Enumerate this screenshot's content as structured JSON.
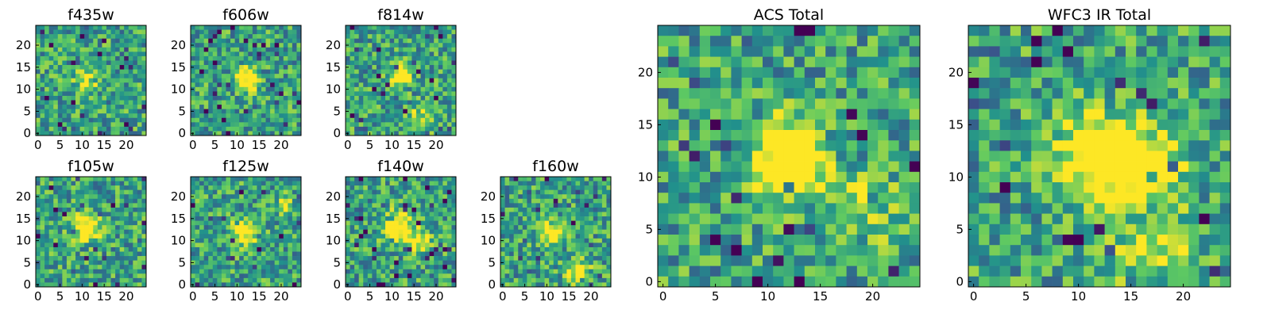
{
  "figure": {
    "colormap": [
      "#440154",
      "#3b528b",
      "#21918c",
      "#5ec962",
      "#fde725"
    ],
    "panels": [
      {
        "id": "f435w",
        "title": "f435w",
        "grid_size": 25,
        "seed": 11,
        "blobs": [
          {
            "cx": 11,
            "cy": 12,
            "sigma": 1.8,
            "amp": 0.35
          }
        ],
        "xticks": [
          "0",
          "5",
          "10",
          "15",
          "20"
        ],
        "xtick_values": [
          0,
          5,
          10,
          15,
          20
        ],
        "yticks": [
          "0",
          "5",
          "10",
          "15",
          "20"
        ],
        "ytick_values": [
          0,
          5,
          10,
          15,
          20
        ]
      },
      {
        "id": "f606w",
        "title": "f606w",
        "grid_size": 25,
        "seed": 23,
        "blobs": [
          {
            "cx": 12,
            "cy": 12,
            "sigma": 1.6,
            "amp": 0.9
          }
        ],
        "xticks": [
          "0",
          "5",
          "10",
          "15",
          "20"
        ],
        "xtick_values": [
          0,
          5,
          10,
          15,
          20
        ],
        "yticks": [
          "0",
          "5",
          "10",
          "15",
          "20"
        ],
        "ytick_values": [
          0,
          5,
          10,
          15,
          20
        ]
      },
      {
        "id": "f814w",
        "title": "f814w",
        "grid_size": 25,
        "seed": 37,
        "blobs": [
          {
            "cx": 12,
            "cy": 13,
            "sigma": 1.6,
            "amp": 0.75
          },
          {
            "cx": 16,
            "cy": 3,
            "sigma": 1.8,
            "amp": 0.4
          }
        ],
        "xticks": [
          "0",
          "5",
          "10",
          "15",
          "20"
        ],
        "xtick_values": [
          0,
          5,
          10,
          15,
          20
        ],
        "yticks": [
          "0",
          "5",
          "10",
          "15",
          "20"
        ],
        "ytick_values": [
          0,
          5,
          10,
          15,
          20
        ]
      },
      {
        "id": "f105w",
        "title": "f105w",
        "grid_size": 25,
        "seed": 41,
        "blobs": [
          {
            "cx": 11,
            "cy": 13,
            "sigma": 2.0,
            "amp": 0.7
          }
        ],
        "xticks": [
          "0",
          "5",
          "10",
          "15",
          "20"
        ],
        "xtick_values": [
          0,
          5,
          10,
          15,
          20
        ],
        "yticks": [
          "0",
          "5",
          "10",
          "15",
          "20"
        ],
        "ytick_values": [
          0,
          5,
          10,
          15,
          20
        ]
      },
      {
        "id": "f125w",
        "title": "f125w",
        "grid_size": 25,
        "seed": 53,
        "blobs": [
          {
            "cx": 12,
            "cy": 12,
            "sigma": 2.0,
            "amp": 0.6
          },
          {
            "cx": 21,
            "cy": 18,
            "sigma": 1.2,
            "amp": 0.5
          }
        ],
        "xticks": [
          "0",
          "5",
          "10",
          "15",
          "20"
        ],
        "xtick_values": [
          0,
          5,
          10,
          15,
          20
        ],
        "yticks": [
          "0",
          "5",
          "10",
          "15",
          "20"
        ],
        "ytick_values": [
          0,
          5,
          10,
          15,
          20
        ]
      },
      {
        "id": "f140w",
        "title": "f140w",
        "grid_size": 25,
        "seed": 67,
        "blobs": [
          {
            "cx": 11,
            "cy": 13,
            "sigma": 2.2,
            "amp": 0.75
          },
          {
            "cx": 16,
            "cy": 10,
            "sigma": 1.8,
            "amp": 0.45
          }
        ],
        "xticks": [
          "0",
          "5",
          "10",
          "15",
          "20"
        ],
        "xtick_values": [
          0,
          5,
          10,
          15,
          20
        ],
        "yticks": [
          "0",
          "5",
          "10",
          "15",
          "20"
        ],
        "ytick_values": [
          0,
          5,
          10,
          15,
          20
        ]
      },
      {
        "id": "f160w",
        "title": "f160w",
        "grid_size": 25,
        "seed": 79,
        "blobs": [
          {
            "cx": 11,
            "cy": 12,
            "sigma": 2.0,
            "amp": 0.6
          },
          {
            "cx": 17,
            "cy": 3,
            "sigma": 1.8,
            "amp": 0.5
          }
        ],
        "xticks": [
          "0",
          "5",
          "10",
          "15",
          "20"
        ],
        "xtick_values": [
          0,
          5,
          10,
          15,
          20
        ],
        "yticks": [
          "0",
          "5",
          "10",
          "15",
          "20"
        ],
        "ytick_values": [
          0,
          5,
          10,
          15,
          20
        ]
      },
      {
        "id": "acs-total",
        "title": "ACS Total",
        "grid_size": 25,
        "seed": 97,
        "blobs": [
          {
            "cx": 12,
            "cy": 12,
            "sigma": 2.2,
            "amp": 0.95
          },
          {
            "cx": 19,
            "cy": 7,
            "sigma": 2.5,
            "amp": 0.25
          }
        ],
        "xticks": [
          "0",
          "5",
          "10",
          "15",
          "20"
        ],
        "xtick_values": [
          0,
          5,
          10,
          15,
          20
        ],
        "yticks": [
          "0",
          "5",
          "10",
          "15",
          "20"
        ],
        "ytick_values": [
          0,
          5,
          10,
          15,
          20
        ]
      },
      {
        "id": "wfc3-ir-total",
        "title": "WFC3 IR Total",
        "grid_size": 25,
        "seed": 113,
        "blobs": [
          {
            "cx": 12,
            "cy": 12,
            "sigma": 2.6,
            "amp": 0.85
          },
          {
            "cx": 17,
            "cy": 11,
            "sigma": 2.2,
            "amp": 0.5
          },
          {
            "cx": 17,
            "cy": 3,
            "sigma": 2.5,
            "amp": 0.35
          }
        ],
        "xticks": [
          "0",
          "5",
          "10",
          "15",
          "20"
        ],
        "xtick_values": [
          0,
          5,
          10,
          15,
          20
        ],
        "yticks": [
          "0",
          "5",
          "10",
          "15",
          "20"
        ],
        "ytick_values": [
          0,
          5,
          10,
          15,
          20
        ]
      }
    ]
  },
  "chart_data": [
    {
      "type": "heatmap",
      "title": "f435w",
      "x_range": [
        0,
        24
      ],
      "y_range": [
        0,
        24
      ],
      "xticks": [
        0,
        5,
        10,
        15,
        20
      ],
      "yticks": [
        0,
        5,
        10,
        15,
        20
      ],
      "colormap": "viridis",
      "feature": "weak central source near (11, 12) amid noise"
    },
    {
      "type": "heatmap",
      "title": "f606w",
      "x_range": [
        0,
        24
      ],
      "y_range": [
        0,
        24
      ],
      "xticks": [
        0,
        5,
        10,
        15,
        20
      ],
      "yticks": [
        0,
        5,
        10,
        15,
        20
      ],
      "colormap": "viridis",
      "feature": "bright central source near (12, 12)"
    },
    {
      "type": "heatmap",
      "title": "f814w",
      "x_range": [
        0,
        24
      ],
      "y_range": [
        0,
        24
      ],
      "xticks": [
        0,
        5,
        10,
        15,
        20
      ],
      "yticks": [
        0,
        5,
        10,
        15,
        20
      ],
      "colormap": "viridis",
      "feature": "bright central source near (12, 13)"
    },
    {
      "type": "heatmap",
      "title": "f105w",
      "x_range": [
        0,
        24
      ],
      "y_range": [
        0,
        24
      ],
      "xticks": [
        0,
        5,
        10,
        15,
        20
      ],
      "yticks": [
        0,
        5,
        10,
        15,
        20
      ],
      "colormap": "viridis",
      "feature": "central source near (11, 13)"
    },
    {
      "type": "heatmap",
      "title": "f125w",
      "x_range": [
        0,
        24
      ],
      "y_range": [
        0,
        24
      ],
      "xticks": [
        0,
        5,
        10,
        15,
        20
      ],
      "yticks": [
        0,
        5,
        10,
        15,
        20
      ],
      "colormap": "viridis",
      "feature": "central source near (12, 12)"
    },
    {
      "type": "heatmap",
      "title": "f140w",
      "x_range": [
        0,
        24
      ],
      "y_range": [
        0,
        24
      ],
      "xticks": [
        0,
        5,
        10,
        15,
        20
      ],
      "yticks": [
        0,
        5,
        10,
        15,
        20
      ],
      "colormap": "viridis",
      "feature": "extended central source near (11, 13)"
    },
    {
      "type": "heatmap",
      "title": "f160w",
      "x_range": [
        0,
        24
      ],
      "y_range": [
        0,
        24
      ],
      "xticks": [
        0,
        5,
        10,
        15,
        20
      ],
      "yticks": [
        0,
        5,
        10,
        15,
        20
      ],
      "colormap": "viridis",
      "feature": "central source near (11, 12)"
    },
    {
      "type": "heatmap",
      "title": "ACS Total",
      "x_range": [
        0,
        24
      ],
      "y_range": [
        0,
        24
      ],
      "xticks": [
        0,
        5,
        10,
        15,
        20
      ],
      "yticks": [
        0,
        5,
        10,
        15,
        20
      ],
      "colormap": "viridis",
      "feature": "bright central source near (12, 12)"
    },
    {
      "type": "heatmap",
      "title": "WFC3 IR Total",
      "x_range": [
        0,
        24
      ],
      "y_range": [
        0,
        24
      ],
      "xticks": [
        0,
        5,
        10,
        15,
        20
      ],
      "yticks": [
        0,
        5,
        10,
        15,
        20
      ],
      "colormap": "viridis",
      "feature": "bright central source near (12, 12) extending to (17, 11)"
    }
  ]
}
